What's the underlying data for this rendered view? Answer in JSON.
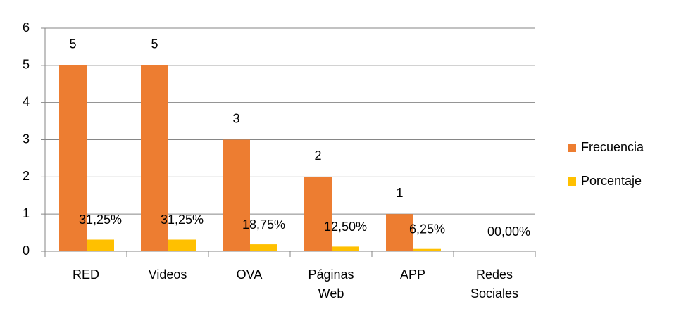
{
  "chart_data": {
    "type": "bar",
    "categories": [
      "RED",
      "Videos",
      "OVA",
      "Páginas Web",
      "APP",
      "Redes Sociales"
    ],
    "series": [
      {
        "name": "Frecuencia",
        "color": "#ED7D31",
        "values": [
          5,
          5,
          3,
          2,
          1,
          0
        ],
        "value_labels": [
          "5",
          "5",
          "3",
          "2",
          "1",
          null
        ]
      },
      {
        "name": "Porcentaje",
        "color": "#FFC000",
        "values": [
          0.3125,
          0.3125,
          0.1875,
          0.125,
          0.0625,
          0
        ],
        "value_labels": [
          "31,25%",
          "31,25%",
          "18,75%",
          "12,50%",
          "6,25%",
          "00,00%"
        ]
      }
    ],
    "ylim": [
      0,
      6
    ],
    "yticks": [
      0,
      1,
      2,
      3,
      4,
      5,
      6
    ],
    "grid": true,
    "legend": "right"
  }
}
